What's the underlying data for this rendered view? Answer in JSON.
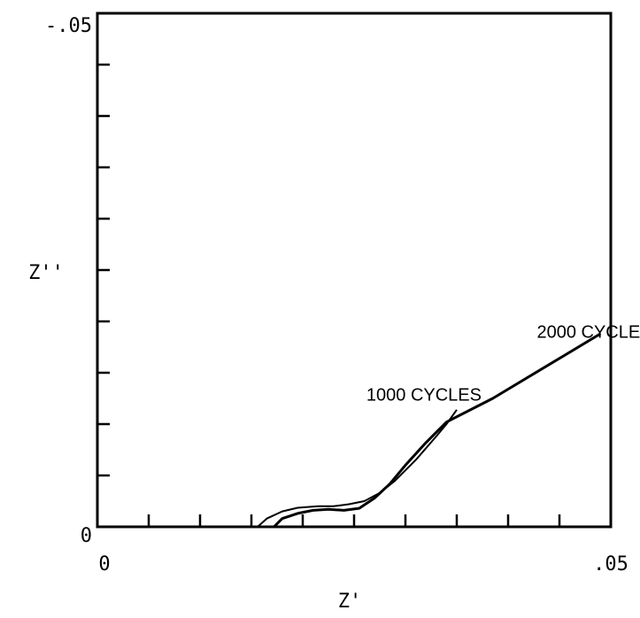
{
  "chart_data": {
    "type": "line",
    "xlabel": "Z'",
    "ylabel": "Z''",
    "xlim": [
      0,
      0.05
    ],
    "ylim": [
      0,
      -0.05
    ],
    "x_tick_labels": [
      "0",
      ".05"
    ],
    "y_tick_labels": [
      "0",
      "-.05"
    ],
    "grid": false,
    "series": [
      {
        "name": "1000 CYCLES",
        "points": [
          [
            0.0156,
            0.0
          ],
          [
            0.0165,
            -0.0008
          ],
          [
            0.018,
            -0.0015
          ],
          [
            0.0195,
            -0.00185
          ],
          [
            0.0215,
            -0.002
          ],
          [
            0.023,
            -0.002
          ],
          [
            0.0245,
            -0.0022
          ],
          [
            0.026,
            -0.0025
          ],
          [
            0.0275,
            -0.0033
          ],
          [
            0.029,
            -0.0045
          ],
          [
            0.031,
            -0.0065
          ],
          [
            0.033,
            -0.0088
          ],
          [
            0.034,
            -0.01
          ],
          [
            0.035,
            -0.0114
          ]
        ]
      },
      {
        "name": "2000 CYCLES",
        "points": [
          [
            0.0172,
            0.0
          ],
          [
            0.018,
            -0.0008
          ],
          [
            0.0195,
            -0.0013
          ],
          [
            0.021,
            -0.0016
          ],
          [
            0.0225,
            -0.0017
          ],
          [
            0.024,
            -0.0016
          ],
          [
            0.0255,
            -0.0018
          ],
          [
            0.027,
            -0.0028
          ],
          [
            0.0285,
            -0.0042
          ],
          [
            0.03,
            -0.006
          ],
          [
            0.032,
            -0.0082
          ],
          [
            0.034,
            -0.0102
          ],
          [
            0.0385,
            -0.0125
          ],
          [
            0.0435,
            -0.0155
          ],
          [
            0.049,
            -0.0188
          ]
        ]
      }
    ],
    "annotations": [
      {
        "text": "2000 CYCLES",
        "series": "2000 CYCLES",
        "x": 0.0428,
        "y": -0.0184
      },
      {
        "text": "1000 CYCLES",
        "series": "1000 CYCLES",
        "x": 0.0262,
        "y": -0.0123
      }
    ],
    "x_ticks_count": 10,
    "y_ticks_count": 10
  }
}
